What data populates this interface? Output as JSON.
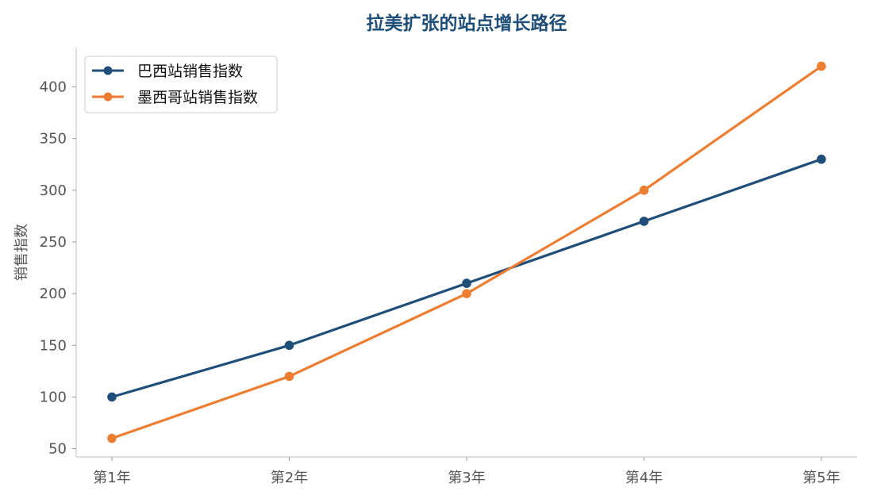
{
  "chart_data": {
    "type": "line",
    "title": "拉美扩张的站点增长路径",
    "xlabel": "",
    "ylabel": "销售指数",
    "categories": [
      "第1年",
      "第2年",
      "第3年",
      "第4年",
      "第5年"
    ],
    "yticks": [
      50,
      100,
      150,
      200,
      250,
      300,
      350,
      400
    ],
    "ylim": [
      42,
      438
    ],
    "grid": false,
    "legend_position": "top-left",
    "series": [
      {
        "name": "巴西站销售指数",
        "values": [
          100,
          150,
          210,
          270,
          330
        ],
        "color": "#1f4e79",
        "marker": "circle"
      },
      {
        "name": "墨西哥站销售指数",
        "values": [
          60,
          120,
          200,
          300,
          420
        ],
        "color": "#ed7d31",
        "marker": "circle"
      }
    ]
  }
}
